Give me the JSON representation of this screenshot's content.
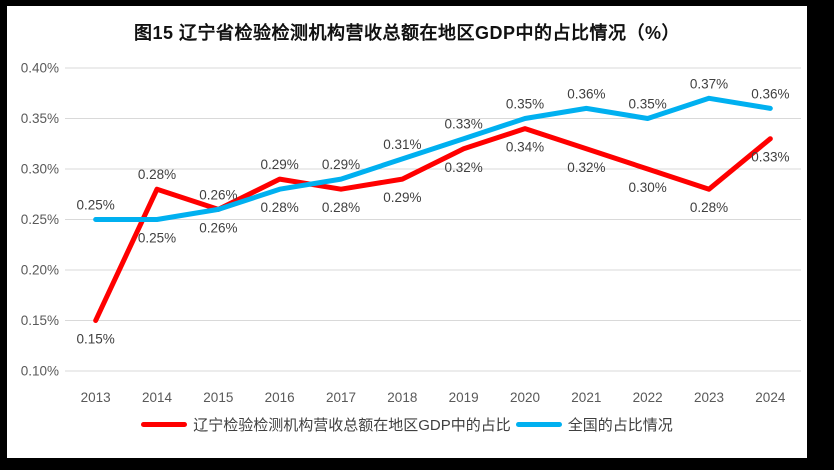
{
  "chart_data": {
    "type": "line",
    "title": "图15 辽宁省检验检测机构营收总额在地区GDP中的占比情况（%）",
    "categories": [
      "2013",
      "2014",
      "2015",
      "2016",
      "2017",
      "2018",
      "2019",
      "2020",
      "2021",
      "2022",
      "2023",
      "2024"
    ],
    "series": [
      {
        "name": "辽宁检验检测机构营收总额在地区GDP中的占比",
        "color": "#FF0000",
        "values": [
          0.15,
          0.28,
          0.26,
          0.29,
          0.28,
          0.29,
          0.32,
          0.34,
          0.32,
          0.3,
          0.28,
          0.33
        ],
        "labels": [
          "0.15%",
          "0.28%",
          "0.26%",
          "0.29%",
          "0.28%",
          "0.29%",
          "0.32%",
          "0.34%",
          "0.32%",
          "0.30%",
          "0.28%",
          "0.33%"
        ],
        "label_side": [
          "below",
          "above",
          "above",
          "above",
          "below",
          "below",
          "below",
          "below",
          "below",
          "below",
          "below",
          "below"
        ]
      },
      {
        "name": "全国的占比情况",
        "color": "#00B0F0",
        "values": [
          0.25,
          0.25,
          0.26,
          0.28,
          0.29,
          0.31,
          0.33,
          0.35,
          0.36,
          0.35,
          0.37,
          0.36
        ],
        "labels": [
          "0.25%",
          "0.25%",
          "0.26%",
          "0.28%",
          "0.29%",
          "0.31%",
          "0.33%",
          "0.35%",
          "0.36%",
          "0.35%",
          "0.37%",
          "0.36%"
        ],
        "label_side": [
          "above",
          "below",
          "below",
          "below",
          "above",
          "above",
          "above",
          "above",
          "above",
          "above",
          "above",
          "above"
        ]
      }
    ],
    "ylim": [
      0.1,
      0.4
    ],
    "ytick_step": 0.05,
    "ytick_labels": [
      "0.40%",
      "0.35%",
      "0.30%",
      "0.25%",
      "0.20%",
      "0.15%",
      "0.10%"
    ],
    "grid": true,
    "legend_position": "bottom"
  }
}
